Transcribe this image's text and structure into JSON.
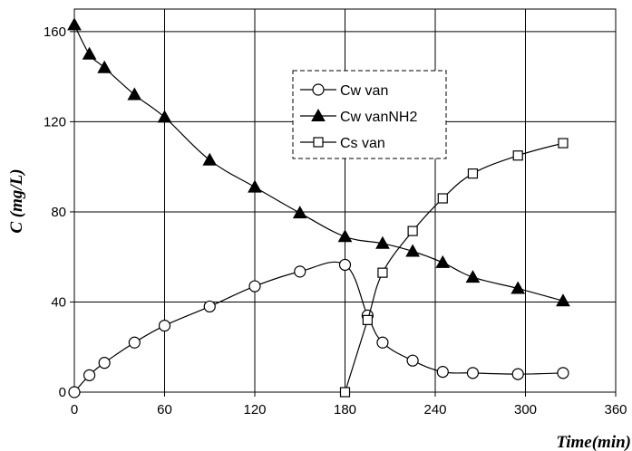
{
  "chart_data": {
    "type": "line",
    "title": "",
    "xlabel": "Time(min)",
    "ylabel": "C (mg/L)",
    "xlim": [
      0,
      360
    ],
    "ylim": [
      0,
      170
    ],
    "x_ticks": [
      0,
      60,
      120,
      180,
      240,
      300,
      360
    ],
    "y_ticks": [
      0,
      40,
      80,
      120,
      160
    ],
    "grid": true,
    "legend_position": "top-center",
    "series": [
      {
        "name": "Cw van",
        "marker": "open-circle",
        "x": [
          0,
          10,
          20,
          40,
          60,
          90,
          120,
          150,
          180,
          195,
          205,
          225,
          245,
          265,
          295,
          325
        ],
        "y": [
          0,
          7.5,
          13,
          22,
          29.5,
          38,
          47,
          53.5,
          56.5,
          34,
          22,
          14,
          9,
          8.5,
          8,
          8.5
        ]
      },
      {
        "name": "Cw vanNH2",
        "marker": "filled-triangle",
        "x": [
          0,
          10,
          20,
          40,
          60,
          90,
          120,
          150,
          180,
          205,
          225,
          245,
          265,
          295,
          325
        ],
        "y": [
          163,
          150,
          144,
          132,
          122,
          103,
          91,
          79.5,
          69,
          66,
          62.5,
          57.5,
          51,
          46,
          40.5
        ]
      },
      {
        "name": "Cs van",
        "marker": "open-square",
        "x": [
          180,
          195,
          205,
          225,
          245,
          265,
          295,
          325
        ],
        "y": [
          0,
          32,
          53,
          71.5,
          86,
          97,
          105,
          110.5
        ]
      }
    ]
  }
}
